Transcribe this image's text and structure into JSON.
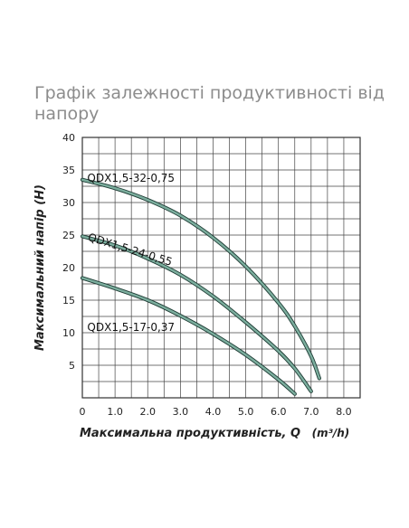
{
  "title": "Графік залежності продуктивності від напору",
  "chart_data": {
    "type": "line",
    "title": "Графік залежності продуктивності від напору",
    "xlabel": "Максимальна продуктивність, Q",
    "xunit": "(m³/h)",
    "ylabel": "Максимальний напір (H)",
    "xlim": [
      0,
      8.5
    ],
    "ylim": [
      0,
      40
    ],
    "xticks": [
      "0",
      "1.0",
      "2.0",
      "3.0",
      "4.0",
      "5.0",
      "6.0",
      "7.0",
      "8.0"
    ],
    "yticks": [
      "5",
      "10",
      "15",
      "20",
      "25",
      "30",
      "35",
      "40"
    ],
    "grid": true,
    "curve_color": "#7cae9e",
    "series": [
      {
        "name": "QDX1,5-32-0,75",
        "x": [
          0,
          1,
          2,
          3,
          4,
          5,
          6,
          6.5,
          7.0,
          7.25
        ],
        "y": [
          33.5,
          32.2,
          30.4,
          28.0,
          24.6,
          20.2,
          14.6,
          11.0,
          6.4,
          3.0
        ]
      },
      {
        "name": "QDX1,5-24-0,55",
        "x": [
          0,
          1,
          2,
          3,
          4,
          5,
          6,
          6.5,
          7.0
        ],
        "y": [
          24.8,
          23.4,
          21.4,
          18.9,
          15.6,
          11.6,
          7.2,
          4.5,
          1.0
        ]
      },
      {
        "name": "QDX1,5-17-0,37",
        "x": [
          0,
          1,
          2,
          3,
          4,
          5,
          6,
          6.5
        ],
        "y": [
          18.4,
          16.8,
          15.0,
          12.6,
          9.8,
          6.6,
          2.8,
          0.6
        ]
      }
    ]
  }
}
